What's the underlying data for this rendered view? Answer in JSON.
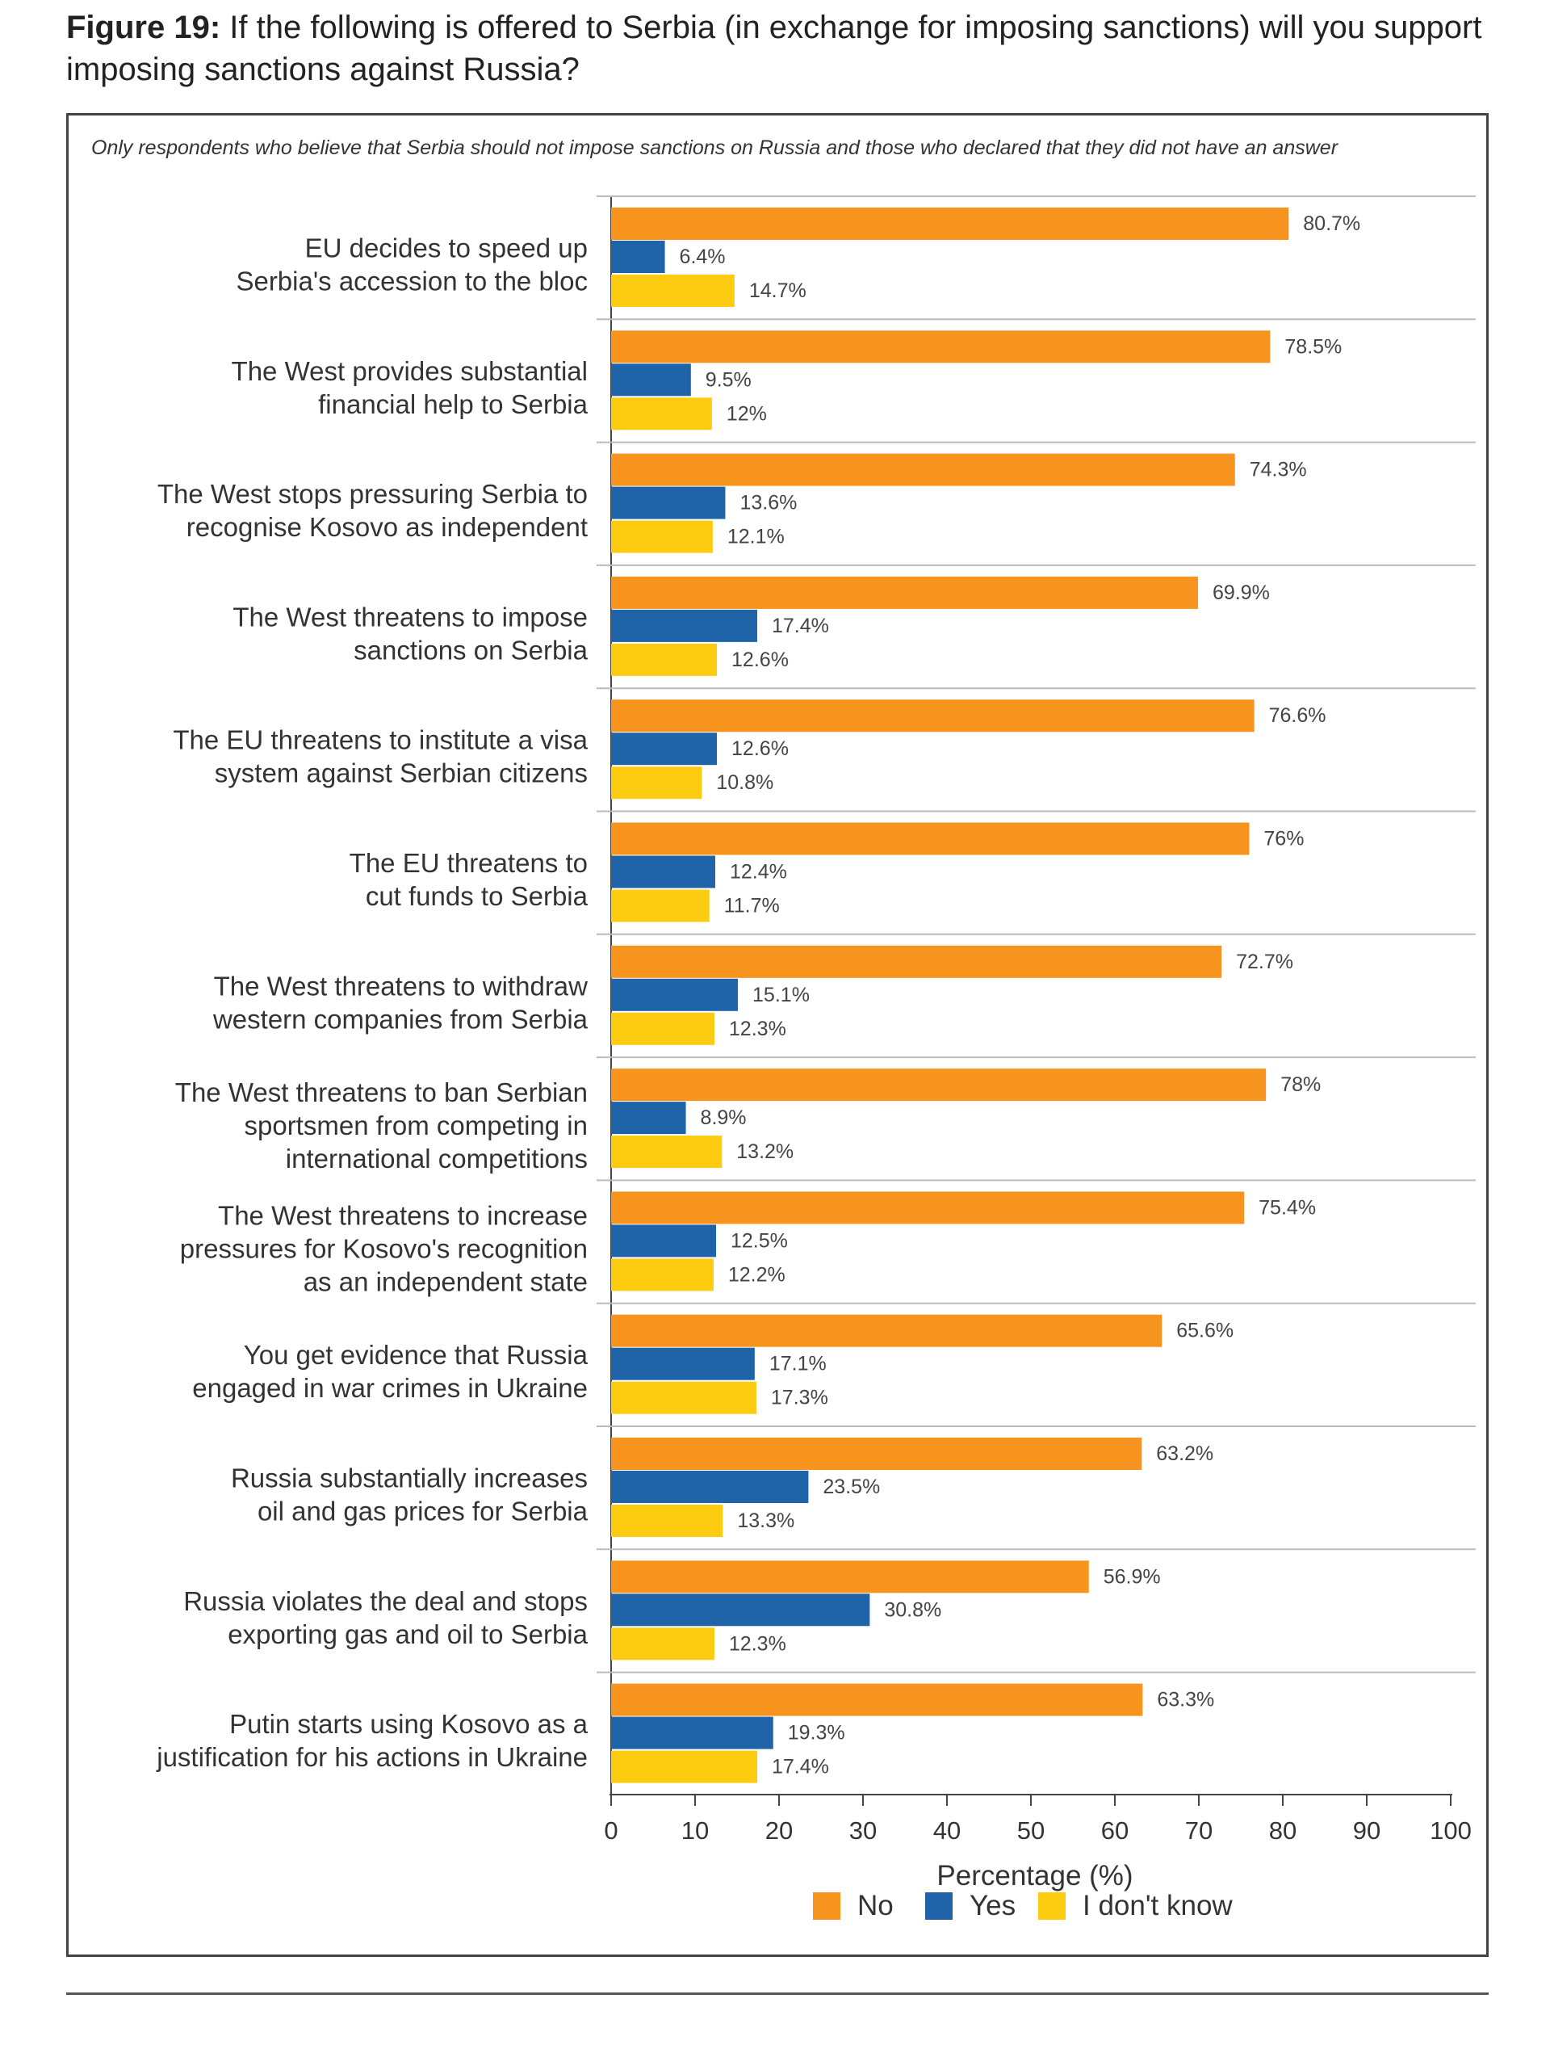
{
  "figure": {
    "label": "Figure 19:",
    "title": "If the following is offered to Serbia (in exchange for imposing sanctions) will you support imposing sanctions against Russia?"
  },
  "colors": {
    "no": "#F7941D",
    "yes": "#1F63A8",
    "dont_know": "#FDCB0F",
    "axis": "#444444",
    "grid": "#BBBBBB",
    "text": "#333333"
  },
  "chart_data": {
    "type": "bar",
    "orientation": "horizontal",
    "subtitle": "Only respondents who believe that Serbia should not impose sanctions on Russia and those who declared that they did not have an answer",
    "xlabel": "Percentage (%)",
    "ylabel": "",
    "xlim": [
      0,
      100
    ],
    "xticks": [
      "0",
      "10",
      "20",
      "30",
      "40",
      "50",
      "60",
      "70",
      "80",
      "90",
      "100"
    ],
    "legend_position": "bottom-center",
    "categories": [
      [
        "EU decides to speed up",
        "Serbia's accession to the bloc"
      ],
      [
        "The West provides substantial",
        "financial help to Serbia"
      ],
      [
        "The West stops pressuring Serbia to",
        "recognise Kosovo as independent"
      ],
      [
        "The West threatens to impose",
        "sanctions on Serbia"
      ],
      [
        "The EU threatens to institute a visa",
        "system against Serbian citizens"
      ],
      [
        "The EU threatens to",
        "cut funds to Serbia"
      ],
      [
        "The West threatens to withdraw",
        "western companies from Serbia"
      ],
      [
        "The West threatens to ban Serbian",
        "sportsmen from competing in",
        "international competitions"
      ],
      [
        "The West threatens to increase",
        "pressures for Kosovo's recognition",
        "as an independent state"
      ],
      [
        "You get evidence that Russia",
        "engaged in war crimes in Ukraine"
      ],
      [
        "Russia substantially increases",
        "oil and gas prices for Serbia"
      ],
      [
        "Russia violates the deal and stops",
        "exporting gas and oil to Serbia"
      ],
      [
        "Putin starts using Kosovo as a",
        "justification for his actions in Ukraine"
      ]
    ],
    "series": [
      {
        "name": "No",
        "key": "no",
        "values": [
          80.7,
          78.5,
          74.3,
          69.9,
          76.6,
          76,
          72.7,
          78,
          75.4,
          65.6,
          63.2,
          56.9,
          63.3
        ],
        "labels": [
          "80.7%",
          "78.5%",
          "74.3%",
          "69.9%",
          "76.6%",
          "76%",
          "72.7%",
          "78%",
          "75.4%",
          "65.6%",
          "63.2%",
          "56.9%",
          "63.3%"
        ]
      },
      {
        "name": "Yes",
        "key": "yes",
        "values": [
          6.4,
          9.5,
          13.6,
          17.4,
          12.6,
          12.4,
          15.1,
          8.9,
          12.5,
          17.1,
          23.5,
          30.8,
          19.3
        ],
        "labels": [
          "6.4%",
          "9.5%",
          "13.6%",
          "17.4%",
          "12.6%",
          "12.4%",
          "15.1%",
          "8.9%",
          "12.5%",
          "17.1%",
          "23.5%",
          "30.8%",
          "19.3%"
        ]
      },
      {
        "name": "I don't know",
        "key": "dont_know",
        "values": [
          14.7,
          12,
          12.1,
          12.6,
          10.8,
          11.7,
          12.3,
          13.2,
          12.2,
          17.3,
          13.3,
          12.3,
          17.4
        ],
        "labels": [
          "14.7%",
          "12%",
          "12.1%",
          "12.6%",
          "10.8%",
          "11.7%",
          "12.3%",
          "13.2%",
          "12.2%",
          "17.3%",
          "13.3%",
          "12.3%",
          "17.4%"
        ]
      }
    ]
  }
}
